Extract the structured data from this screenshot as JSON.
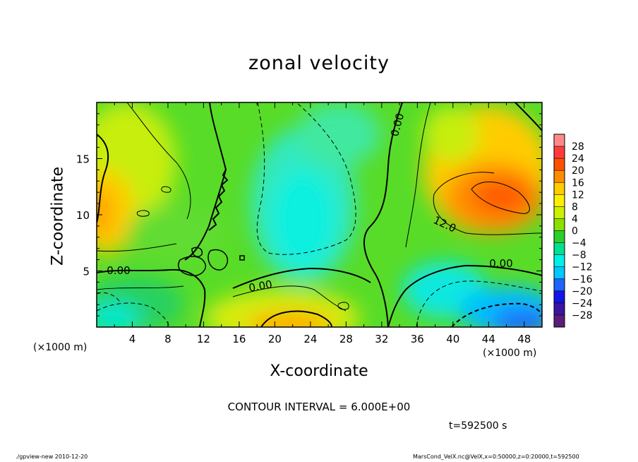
{
  "chart_data": {
    "type": "heatmap",
    "title": "zonal velocity",
    "xlabel": "X-coordinate",
    "ylabel": "Z-coordinate",
    "x_unit_label": "(×1000 m)",
    "xlim": [
      0,
      50
    ],
    "ylim": [
      0,
      20
    ],
    "x_ticks": [
      4,
      8,
      12,
      16,
      20,
      24,
      28,
      32,
      36,
      40,
      44,
      48
    ],
    "y_ticks": [
      5,
      10,
      15
    ],
    "colorbar_ticks": [
      28,
      24,
      20,
      16,
      12,
      8,
      4,
      0,
      -4,
      -8,
      -12,
      -16,
      -20,
      -24,
      -28
    ],
    "colorbar_colors": [
      "#ff8a8a",
      "#ff3c3c",
      "#ff5000",
      "#ff8c00",
      "#ffcc00",
      "#ffee00",
      "#ccf000",
      "#8ce000",
      "#28d028",
      "#00e090",
      "#00f0e8",
      "#00c8ff",
      "#1e64ff",
      "#1414e6",
      "#3c14a0",
      "#5a1e7a"
    ],
    "contour_labels": [
      "0.00",
      "0.00",
      "0.00",
      "0.00",
      "12.0"
    ],
    "contour_interval": "CONTOUR INTERVAL = 6.000E+00",
    "features": [
      {
        "x": 45,
        "z": 11.5,
        "value": 22
      },
      {
        "x": 22,
        "z": 0.5,
        "value": 16
      },
      {
        "x": 0.5,
        "z": 10,
        "value": 12
      },
      {
        "x": 24,
        "z": 9,
        "value": -9
      },
      {
        "x": 46,
        "z": 1,
        "value": -14
      },
      {
        "x": 2,
        "z": 1,
        "value": -8
      },
      {
        "x": 8,
        "z": 15,
        "value": 4
      },
      {
        "x": 36,
        "z": 17,
        "value": 6
      }
    ]
  },
  "annotations": {
    "time": "t=592500 s",
    "footer_left": "./gpview-new 2010-12-20",
    "footer_right": "MarsCond_VelX.nc@VelX,x=0:50000,z=0:20000,t=592500"
  }
}
